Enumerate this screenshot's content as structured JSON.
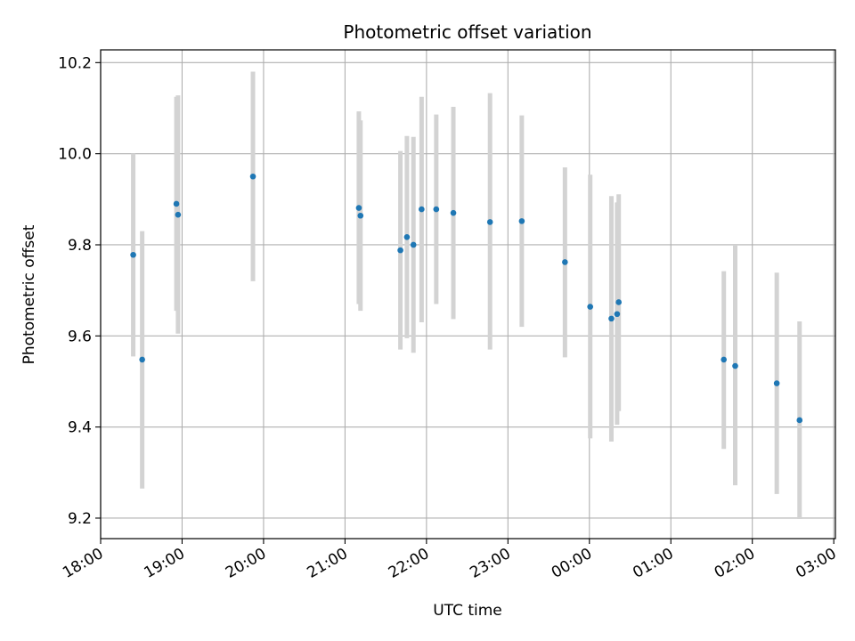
{
  "chart_data": {
    "type": "scatter",
    "title": "Photometric offset variation",
    "xlabel": "UTC time",
    "ylabel": "Photometric offset",
    "x_unit": "hours since 18:00 UTC",
    "xlim": [
      18.0,
      27.02
    ],
    "ylim": [
      9.155,
      10.228
    ],
    "grid": true,
    "xticks": [
      {
        "value": 18,
        "label": "18:00"
      },
      {
        "value": 19,
        "label": "19:00"
      },
      {
        "value": 20,
        "label": "20:00"
      },
      {
        "value": 21,
        "label": "21:00"
      },
      {
        "value": 22,
        "label": "22:00"
      },
      {
        "value": 23,
        "label": "23:00"
      },
      {
        "value": 24,
        "label": "00:00"
      },
      {
        "value": 25,
        "label": "01:00"
      },
      {
        "value": 26,
        "label": "02:00"
      },
      {
        "value": 27,
        "label": "03:00"
      }
    ],
    "yticks": [
      {
        "value": 9.2,
        "label": "9.2"
      },
      {
        "value": 9.4,
        "label": "9.4"
      },
      {
        "value": 9.6,
        "label": "9.6"
      },
      {
        "value": 9.8,
        "label": "9.8"
      },
      {
        "value": 10.0,
        "label": "10.0"
      },
      {
        "value": 10.2,
        "label": "10.2"
      }
    ],
    "colors": {
      "point": "#1f77b4",
      "errorbar": "#d3d3d3",
      "grid": "#b0b0b0"
    },
    "points": [
      {
        "x": 18.4,
        "y": 9.778,
        "ylo": 9.555,
        "yhi": 10.0
      },
      {
        "x": 18.51,
        "y": 9.548,
        "ylo": 9.265,
        "yhi": 9.83
      },
      {
        "x": 18.93,
        "y": 9.89,
        "ylo": 9.655,
        "yhi": 10.125
      },
      {
        "x": 18.95,
        "y": 9.866,
        "ylo": 9.605,
        "yhi": 10.128
      },
      {
        "x": 19.87,
        "y": 9.95,
        "ylo": 9.72,
        "yhi": 10.18
      },
      {
        "x": 21.17,
        "y": 9.881,
        "ylo": 9.67,
        "yhi": 10.093
      },
      {
        "x": 21.19,
        "y": 9.864,
        "ylo": 9.655,
        "yhi": 10.073
      },
      {
        "x": 21.68,
        "y": 9.788,
        "ylo": 9.57,
        "yhi": 10.006
      },
      {
        "x": 21.76,
        "y": 9.817,
        "ylo": 9.595,
        "yhi": 10.039
      },
      {
        "x": 21.84,
        "y": 9.8,
        "ylo": 9.563,
        "yhi": 10.037
      },
      {
        "x": 21.94,
        "y": 9.878,
        "ylo": 9.63,
        "yhi": 10.125
      },
      {
        "x": 22.12,
        "y": 9.878,
        "ylo": 9.67,
        "yhi": 10.086
      },
      {
        "x": 22.33,
        "y": 9.87,
        "ylo": 9.637,
        "yhi": 10.103
      },
      {
        "x": 22.78,
        "y": 9.85,
        "ylo": 9.57,
        "yhi": 10.133
      },
      {
        "x": 23.17,
        "y": 9.852,
        "ylo": 9.62,
        "yhi": 10.084
      },
      {
        "x": 23.7,
        "y": 9.762,
        "ylo": 9.553,
        "yhi": 9.97
      },
      {
        "x": 24.01,
        "y": 9.664,
        "ylo": 9.375,
        "yhi": 9.954
      },
      {
        "x": 24.27,
        "y": 9.638,
        "ylo": 9.368,
        "yhi": 9.907
      },
      {
        "x": 24.34,
        "y": 9.648,
        "ylo": 9.405,
        "yhi": 9.893
      },
      {
        "x": 24.36,
        "y": 9.674,
        "ylo": 9.435,
        "yhi": 9.911
      },
      {
        "x": 25.65,
        "y": 9.548,
        "ylo": 9.352,
        "yhi": 9.742
      },
      {
        "x": 25.79,
        "y": 9.534,
        "ylo": 9.272,
        "yhi": 9.8
      },
      {
        "x": 26.3,
        "y": 9.496,
        "ylo": 9.253,
        "yhi": 9.739
      },
      {
        "x": 26.58,
        "y": 9.415,
        "ylo": 9.198,
        "yhi": 9.632
      }
    ]
  }
}
